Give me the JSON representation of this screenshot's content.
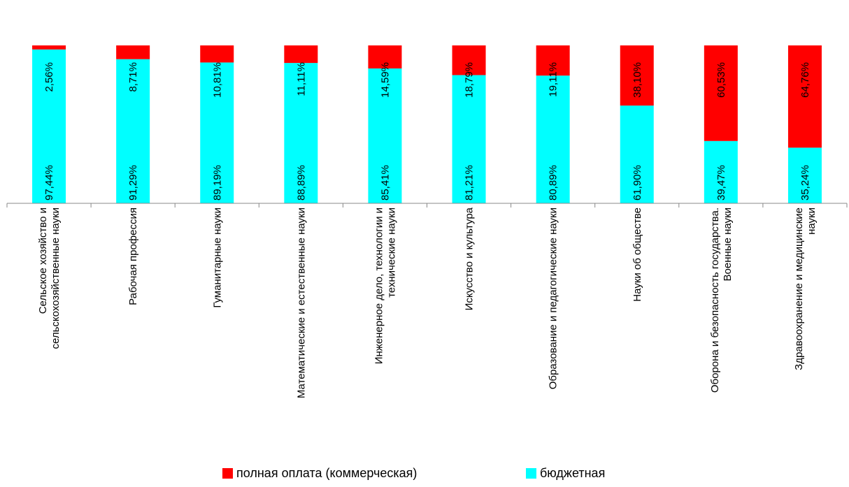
{
  "chart_data": {
    "type": "bar",
    "stacked": true,
    "normalized_percent": true,
    "categories": [
      [
        "Сельское хозяйство и",
        "сельскохозяйственные науки"
      ],
      [
        "Рабочая профессия"
      ],
      [
        "Гуманитарные науки"
      ],
      [
        "Математические и естественные науки"
      ],
      [
        "Инженерное дело, технологии и",
        "технические науки"
      ],
      [
        "Искусство и культура"
      ],
      [
        "Образование и педагогические науки"
      ],
      [
        "Науки об обществе"
      ],
      [
        "Оборона и безопасность государства.",
        "Военные науки"
      ],
      [
        "Здравоохранение и медицинские",
        "науки"
      ]
    ],
    "series": [
      {
        "name": "бюджетная",
        "color": "#00FFFF",
        "values": [
          97.44,
          91.29,
          89.19,
          88.89,
          85.41,
          81.21,
          80.89,
          61.9,
          39.47,
          35.24
        ],
        "labels": [
          "97,44%",
          "91,29%",
          "89,19%",
          "88,89%",
          "85,41%",
          "81,21%",
          "80,89%",
          "61,90%",
          "39,47%",
          "35,24%"
        ]
      },
      {
        "name": "полная оплата (коммерческая)",
        "color": "#FF0000",
        "values": [
          2.56,
          8.71,
          10.81,
          11.11,
          14.59,
          18.79,
          19.11,
          38.1,
          60.53,
          64.76
        ],
        "labels": [
          "2,56%",
          "8,71%",
          "10,81%",
          "11,11%",
          "14,59%",
          "18,79%",
          "19,11%",
          "38,10%",
          "60,53%",
          "64,76%"
        ]
      }
    ],
    "ylim": [
      0,
      100
    ],
    "grid": false,
    "legend": {
      "position": "bottom",
      "order": [
        "полная оплата (коммерческая)",
        "бюджетная"
      ]
    }
  }
}
